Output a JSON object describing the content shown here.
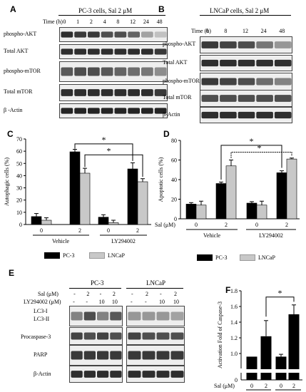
{
  "panelA": {
    "label": "A",
    "title": "PC-3 cells,  Sal 2 μM",
    "time_label": "Time  (h)",
    "times": [
      "0",
      "1",
      "2",
      "4",
      "8",
      "12",
      "24",
      "48"
    ],
    "rows": [
      "phospho-AKT",
      "Total AKT",
      "phospho-mTOR",
      "Total mTOR",
      "β -Actin"
    ],
    "band_intensity": [
      [
        0.9,
        0.85,
        0.85,
        0.75,
        0.75,
        0.65,
        0.35,
        0.2
      ],
      [
        0.9,
        0.9,
        0.9,
        0.9,
        0.9,
        0.9,
        0.9,
        0.85
      ],
      [
        0.7,
        0.75,
        0.75,
        0.7,
        0.65,
        0.6,
        0.55,
        0.45
      ],
      [
        0.9,
        0.9,
        0.9,
        0.9,
        0.9,
        0.9,
        0.9,
        0.85
      ],
      [
        0.95,
        0.95,
        0.95,
        0.95,
        0.95,
        0.95,
        0.95,
        0.95
      ]
    ]
  },
  "panelB": {
    "label": "B",
    "title": "LNCaP cells,  Sal 2 μM",
    "time_label": "Time  (h)",
    "times": [
      "0",
      "8",
      "12",
      "24",
      "48"
    ],
    "rows": [
      "phospho-AKT",
      "Total AKT",
      "phospho-mTOR",
      "Total mTOR",
      "β-Actin"
    ],
    "band_intensity": [
      [
        0.85,
        0.8,
        0.75,
        0.55,
        0.4
      ],
      [
        0.9,
        0.9,
        0.9,
        0.9,
        0.9
      ],
      [
        0.85,
        0.8,
        0.75,
        0.6,
        0.5
      ],
      [
        0.75,
        0.75,
        0.75,
        0.75,
        0.75
      ],
      [
        0.9,
        0.9,
        0.9,
        0.9,
        0.9
      ]
    ]
  },
  "panelC": {
    "label": "C",
    "chart_data": {
      "type": "bar",
      "ylabel": "Autophagic cells (%)",
      "ylim": [
        0,
        70
      ],
      "yticks": [
        "0",
        "10",
        "20",
        "30",
        "40",
        "50",
        "60",
        "70"
      ],
      "groups": [
        {
          "treatment": "Vehicle",
          "sal": [
            "0",
            "2"
          ]
        },
        {
          "treatment": "LY294002",
          "sal": [
            "0",
            "2"
          ]
        }
      ],
      "series": [
        {
          "name": "PC-3",
          "color": "#000000",
          "values": [
            6.5,
            59.5,
            6,
            45.5
          ],
          "errors": [
            2.5,
            2,
            2,
            5
          ]
        },
        {
          "name": "LNCaP",
          "color": "#c8c8c8",
          "values": [
            3.5,
            42,
            1.5,
            35
          ],
          "errors": [
            2,
            4,
            2,
            2.5
          ]
        }
      ],
      "significance": [
        "*",
        "*"
      ],
      "x_tick_labels": [
        "0",
        "2",
        "0",
        "2"
      ],
      "treatments": [
        "Vehicle",
        "LY294002"
      ]
    }
  },
  "panelD": {
    "label": "D",
    "chart_data": {
      "type": "bar",
      "ylabel": "Apoptotic cells (%)",
      "ylim": [
        0,
        80
      ],
      "yticks": [
        "0",
        "20",
        "40",
        "60",
        "80"
      ],
      "xlabel_prefix": "Sal (μM)",
      "x_tick_labels": [
        "0",
        "2",
        "0",
        "2"
      ],
      "treatments": [
        "Vehicle",
        "LY294002"
      ],
      "series": [
        {
          "name": "PC-3",
          "color": "#000000",
          "values": [
            15,
            36,
            16,
            47
          ],
          "errors": [
            1.5,
            1.5,
            1.5,
            2
          ]
        },
        {
          "name": "LNCaP",
          "color": "#c8c8c8",
          "values": [
            14,
            54,
            14,
            61
          ],
          "errors": [
            4,
            6,
            4,
            1
          ]
        }
      ],
      "significance": [
        "*",
        "*"
      ]
    }
  },
  "panelE": {
    "label": "E",
    "groups": [
      "PC-3",
      "LNCaP"
    ],
    "sal_label": "Sal (μM)",
    "ly_label": "LY294002  (μM)",
    "sal_values": [
      "-",
      "2",
      "-",
      "2"
    ],
    "ly_values": [
      "-",
      "-",
      "10",
      "10"
    ],
    "rows": [
      "LC3-I",
      "LC3-II",
      "Procaspase-3",
      "PARP",
      "β-Actin"
    ]
  },
  "panelF": {
    "label": "F",
    "chart_data": {
      "type": "bar",
      "ylabel": "Activation Fold of Caspase-3",
      "ylim_broken": [
        0.8,
        1.8
      ],
      "yticks_upper": [
        "1.0",
        "1.2",
        "1.4",
        "1.6",
        "1.8"
      ],
      "yticks_lower": [
        "0"
      ],
      "x_tick_labels": [
        "0",
        "2",
        "0",
        "2"
      ],
      "xlabel_prefix": "Sal (μM)",
      "treatments": [
        "Vehicle",
        "LY294002"
      ],
      "series": [
        {
          "name": "",
          "color": "#000000",
          "values": [
            0.96,
            1.22,
            0.96,
            1.5
          ],
          "errors": [
            0,
            0.2,
            0.03,
            0.12
          ]
        }
      ],
      "significance": [
        "*"
      ]
    }
  },
  "legend": {
    "pc3": "PC-3",
    "lncap": "LNCaP"
  }
}
